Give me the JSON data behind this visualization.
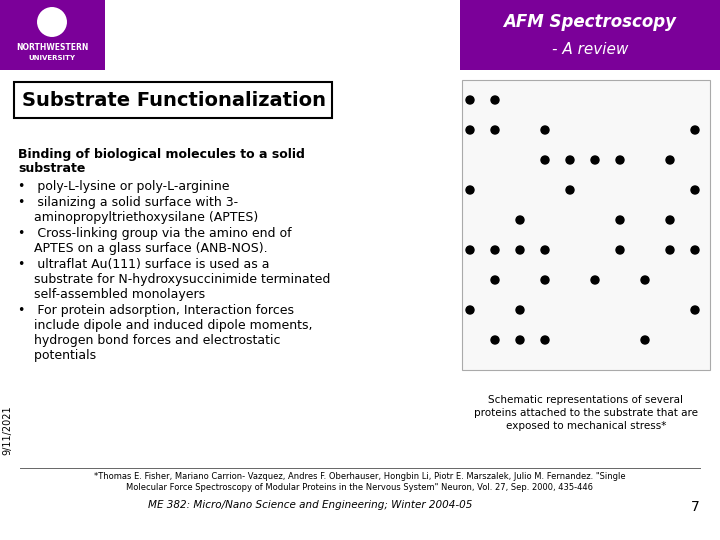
{
  "bg_color": "#ffffff",
  "header_box_color": "#7B0099",
  "header_title": "AFM Spectroscopy",
  "header_subtitle": "- A review",
  "slide_title": "Substrate Functionalization",
  "date_text": "9/11/2021",
  "caption_text": "Schematic representations of several\nproteins attached to the substrate that are\nexposed to mechanical stress*",
  "footnote1": "*Thomas E. Fisher, Mariano Carrion- Vazquez, Andres F. Oberhauser, Hongbin Li, Piotr E. Marszalek, Julio M. Fernandez. \"Single\nMolecular Force Spectroscopy of Modular Proteins in the Nervous System\" Neuron, Vol. 27, Sep. 2000, 435-446",
  "footnote2": "ME 382: Micro/Nano Science and Engineering; Winter 2004-05",
  "page_number": "7",
  "logo_box_color": "#7B0099",
  "header_text_color": "#ffffff",
  "title_box_border": "#000000",
  "main_text_color": "#000000",
  "purple_dark": "#5a0070"
}
